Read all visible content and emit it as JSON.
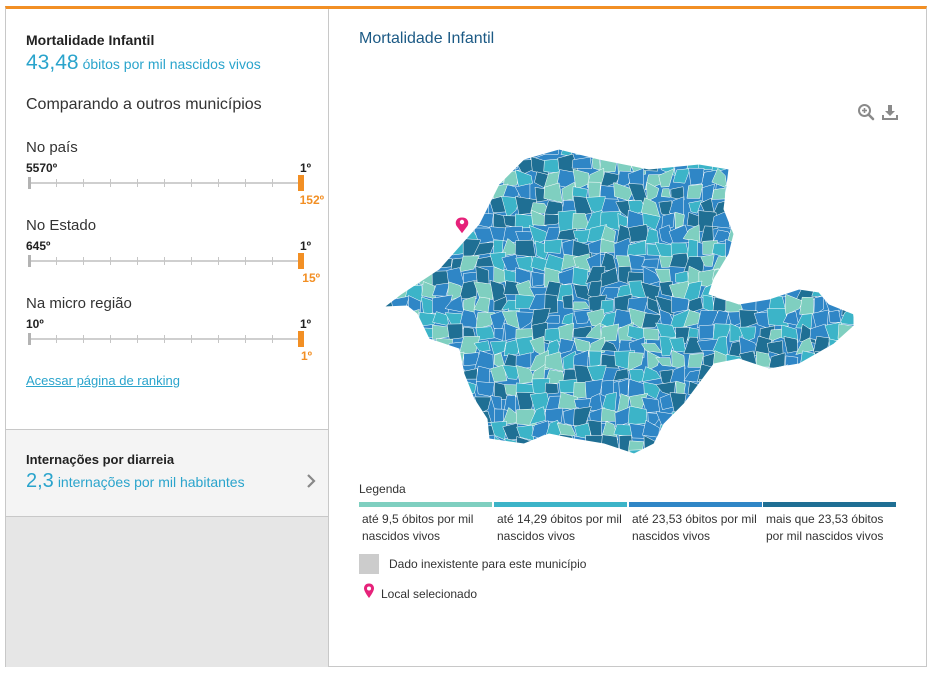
{
  "active_indicator": {
    "title": "Mortalidade Infantil",
    "value": "43,48",
    "unit": "óbitos por mil nascidos vivos"
  },
  "comparison": {
    "heading": "Comparando a outros municípios",
    "groups": [
      {
        "label": "No país",
        "worst": "5570º",
        "best": "1º",
        "position": "152º"
      },
      {
        "label": "No Estado",
        "worst": "645º",
        "best": "1º",
        "position": "15º"
      },
      {
        "label": "Na micro região",
        "worst": "10º",
        "best": "1º",
        "position": "1º"
      }
    ],
    "link_label": "Acessar página de ranking"
  },
  "secondary_indicator": {
    "title": "Internações por diarreia",
    "value": "2,3",
    "unit": "internações por mil habitantes"
  },
  "map": {
    "title": "Mortalidade Infantil",
    "zoom_icon": "zoom-in-icon",
    "download_icon": "download-icon",
    "pin_color": "#e6227a"
  },
  "legend": {
    "title": "Legenda",
    "items": [
      {
        "color": "#7fcfc0",
        "label": "até 9,5 óbitos por mil nascidos vivos"
      },
      {
        "color": "#3cb4c8",
        "label": "até 14,29 óbitos por mil nascidos vivos"
      },
      {
        "color": "#2f86c6",
        "label": "até 23,53 óbitos por mil nascidos vivos"
      },
      {
        "color": "#1f6f94",
        "label": "mais que 23,53 óbitos por mil nascidos vivos"
      }
    ],
    "nodata_color": "#cccccc",
    "nodata_label": "Dado inexistente para este município",
    "selected_label": "Local selecionado"
  },
  "colors": {
    "accent": "#f28f24",
    "value_blue": "#2aa4cc",
    "title_blue": "#1c5a85"
  }
}
